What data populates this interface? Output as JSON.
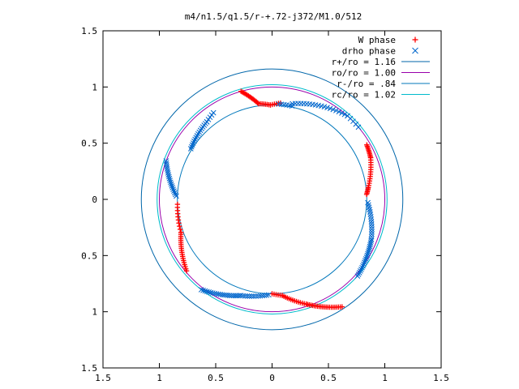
{
  "chart_data": {
    "type": "scatter",
    "title": "m4/n1.5/q1.5/r-+.72-j372/M1.0/512",
    "xlabel": "",
    "ylabel": "",
    "xlim": [
      -1.5,
      1.5
    ],
    "ylim": [
      -1.5,
      1.5
    ],
    "x_ticks": [
      -1.5,
      -1,
      -0.5,
      0,
      0.5,
      1,
      1.5
    ],
    "x_tick_labels": [
      "1.5",
      "1",
      "0.5",
      "0",
      "0.5",
      "1",
      "1.5"
    ],
    "y_ticks": [
      1.5,
      1,
      0.5,
      0,
      -0.5,
      -1,
      -1.5
    ],
    "y_tick_labels": [
      "1.5",
      "1",
      "0.5",
      "0",
      "0.5",
      "1",
      "1.5"
    ],
    "grid": false,
    "legend_position": "top-right",
    "series": [
      {
        "name": "W phase",
        "kind": "points",
        "marker": "plus",
        "color": "#ff0000",
        "arcs": [
          {
            "r_start": 1.0,
            "r_end": 0.86,
            "deg_start": 106,
            "deg_end": 98,
            "n": 16
          },
          {
            "r_start": 0.86,
            "r_end": 0.84,
            "deg_start": 98,
            "deg_end": 91,
            "n": 8
          },
          {
            "r_start": 0.84,
            "r_end": 0.86,
            "deg_start": 91,
            "deg_end": 85,
            "n": 6
          },
          {
            "r_start": 0.97,
            "r_end": 0.95,
            "deg_start": 30,
            "deg_end": 23,
            "n": 10
          },
          {
            "r_start": 0.95,
            "r_end": 0.86,
            "deg_start": 23,
            "deg_end": 7,
            "n": 14
          },
          {
            "r_start": 0.86,
            "r_end": 0.84,
            "deg_start": 7,
            "deg_end": 3,
            "n": 6
          },
          {
            "r_start": 0.99,
            "r_end": 0.86,
            "deg_start": 220,
            "deg_end": 200,
            "n": 20
          },
          {
            "r_start": 0.86,
            "r_end": 0.84,
            "deg_start": 200,
            "deg_end": 183,
            "n": 10
          },
          {
            "r_start": 1.14,
            "r_end": 0.98,
            "deg_start": 303,
            "deg_end": 288,
            "n": 22
          },
          {
            "r_start": 0.98,
            "r_end": 0.86,
            "deg_start": 288,
            "deg_end": 276,
            "n": 14
          },
          {
            "r_start": 0.86,
            "r_end": 0.84,
            "deg_start": 276,
            "deg_end": 270,
            "n": 6
          }
        ]
      },
      {
        "name": "drho phase",
        "kind": "points",
        "marker": "cross",
        "color": "#0066cc",
        "arcs": [
          {
            "r_start": 0.85,
            "r_end": 0.85,
            "deg_start": 86,
            "deg_end": 78,
            "n": 6
          },
          {
            "r_start": 0.87,
            "r_end": 1.0,
            "deg_start": 78,
            "deg_end": 48,
            "n": 20
          },
          {
            "r_start": 1.0,
            "r_end": 1.0,
            "deg_start": 48,
            "deg_end": 40,
            "n": 5
          },
          {
            "r_start": 0.85,
            "r_end": 0.9,
            "deg_start": 148,
            "deg_end": 130,
            "n": 16
          },
          {
            "r_start": 0.9,
            "r_end": 0.93,
            "deg_start": 130,
            "deg_end": 124,
            "n": 5
          },
          {
            "r_start": 0.85,
            "r_end": 1.0,
            "deg_start": 178,
            "deg_end": 160,
            "n": 20
          },
          {
            "r_start": 0.85,
            "r_end": 0.9,
            "deg_start": 268,
            "deg_end": 252,
            "n": 14
          },
          {
            "r_start": 0.9,
            "r_end": 1.02,
            "deg_start": 252,
            "deg_end": 232,
            "n": 22
          },
          {
            "r_start": 0.85,
            "r_end": 0.95,
            "deg_start": 358,
            "deg_end": 338,
            "n": 16
          },
          {
            "r_start": 0.95,
            "r_end": 1.02,
            "deg_start": 338,
            "deg_end": 318,
            "n": 22
          }
        ]
      },
      {
        "name": "r+/ro = 1.16",
        "kind": "circle",
        "radius": 1.16,
        "color": "#0066aa"
      },
      {
        "name": "ro/ro = 1.00",
        "kind": "circle",
        "radius": 1.0,
        "color": "#9900aa"
      },
      {
        "name": "r-/ro = .84",
        "kind": "circle",
        "radius": 0.84,
        "color": "#0077bb"
      },
      {
        "name": "rc/ro = 1.02",
        "kind": "circle",
        "radius": 1.02,
        "color": "#00bbcc"
      }
    ]
  }
}
